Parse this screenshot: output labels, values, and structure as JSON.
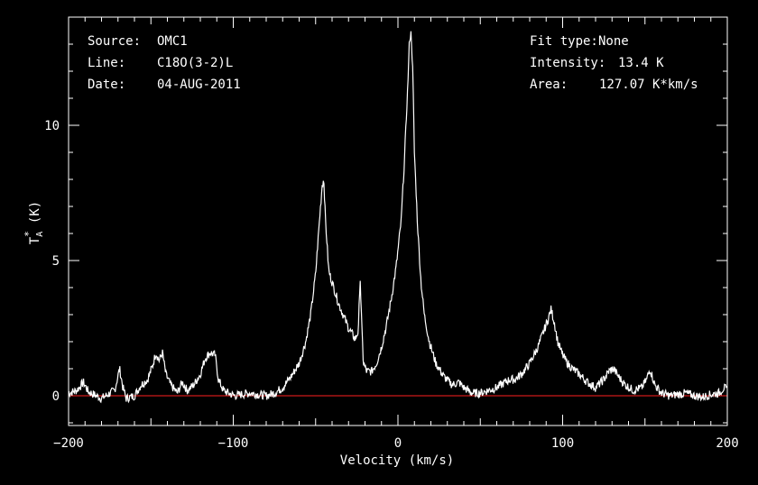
{
  "header_left": {
    "source_label": "Source:",
    "source_value": "OMC1",
    "line_label": "Line:",
    "line_value": "C18O(3-2)L",
    "date_label": "Date:",
    "date_value": "04-AUG-2011"
  },
  "header_right": {
    "fit_label": "Fit type:",
    "fit_value": "None",
    "intensity_label": "Intensity:",
    "intensity_value": "13.4 K",
    "area_label": "Area:",
    "area_value": "127.07 K*km/s"
  },
  "colors": {
    "background": "#000000",
    "spectrum": "#ffffff",
    "baseline": "#ff2020"
  },
  "chart_data": {
    "type": "line",
    "xlabel": "Velocity (km/s)",
    "ylabel_main": "T",
    "ylabel_sub": "A",
    "ylabel_sup": "*",
    "ylabel_unit": "(K)",
    "xlim": [
      -200,
      200
    ],
    "ylim": [
      -1.1,
      14.0
    ],
    "xticks": [
      -200,
      -100,
      0,
      100,
      200
    ],
    "xtick_labels": [
      "−200",
      "−100",
      "0",
      "100",
      "200"
    ],
    "yticks": [
      0,
      5,
      10
    ],
    "ytick_labels": [
      "0",
      "5",
      "10"
    ],
    "baseline_y": 0,
    "grid": false,
    "series": [
      {
        "x": [
          -200,
          -195,
          -191,
          -188,
          -180,
          -172,
          -169,
          -167,
          -165,
          -160,
          -156,
          -152,
          -149,
          -147,
          -145,
          -143,
          -141,
          -138,
          -134,
          -131,
          -128,
          -124,
          -120,
          -117,
          -114,
          -111,
          -109,
          -106,
          -103,
          -99,
          -95,
          -90,
          -85,
          -80,
          -75,
          -70,
          -65,
          -60,
          -56,
          -53,
          -50,
          -48,
          -46,
          -45,
          -44,
          -42,
          -40,
          -38,
          -36,
          -34,
          -32,
          -30,
          -28,
          -26,
          -24,
          -23,
          -22,
          -21,
          -19,
          -16,
          -13,
          -10,
          -7,
          -4,
          -1,
          2,
          4,
          6,
          7,
          8,
          9,
          10,
          12,
          14,
          16,
          19,
          23,
          28,
          33,
          37,
          40,
          45,
          50,
          55,
          60,
          65,
          68,
          71,
          75,
          80,
          85,
          88,
          91,
          93,
          95,
          97,
          100,
          103,
          106,
          110,
          115,
          120,
          125,
          128,
          131,
          134,
          138,
          143,
          148,
          151,
          153,
          156,
          160,
          165,
          170,
          175,
          180,
          185,
          190,
          195,
          198,
          200
        ],
        "y": [
          0.1,
          0.2,
          0.5,
          0.15,
          -0.1,
          0.2,
          1.0,
          0.3,
          -0.1,
          0.0,
          0.4,
          0.6,
          1.1,
          1.6,
          1.3,
          1.6,
          0.8,
          0.4,
          0.1,
          0.5,
          0.2,
          0.4,
          0.8,
          1.4,
          1.6,
          1.5,
          0.6,
          0.2,
          0.1,
          0.0,
          0.05,
          0.1,
          0.05,
          0.0,
          0.1,
          0.3,
          0.7,
          1.2,
          2.0,
          3.0,
          4.5,
          6.2,
          7.8,
          8.0,
          6.5,
          4.6,
          4.2,
          3.8,
          3.4,
          3.1,
          2.8,
          2.5,
          2.3,
          2.1,
          2.4,
          4.5,
          2.6,
          1.2,
          0.9,
          0.9,
          1.2,
          1.8,
          2.6,
          3.6,
          4.8,
          6.5,
          8.8,
          11.5,
          13.2,
          13.4,
          12.0,
          9.0,
          6.2,
          4.2,
          3.0,
          2.0,
          1.2,
          0.7,
          0.4,
          0.5,
          0.3,
          0.1,
          0.1,
          0.2,
          0.3,
          0.5,
          0.6,
          0.6,
          0.8,
          1.2,
          1.8,
          2.3,
          2.8,
          3.2,
          2.7,
          2.0,
          1.5,
          1.2,
          1.0,
          0.8,
          0.5,
          0.3,
          0.6,
          0.9,
          1.0,
          0.7,
          0.4,
          0.2,
          0.3,
          0.6,
          1.0,
          0.4,
          0.1,
          0.0,
          0.05,
          0.1,
          0.0,
          -0.05,
          0.05,
          0.1,
          0.3,
          0.2
        ]
      }
    ]
  }
}
